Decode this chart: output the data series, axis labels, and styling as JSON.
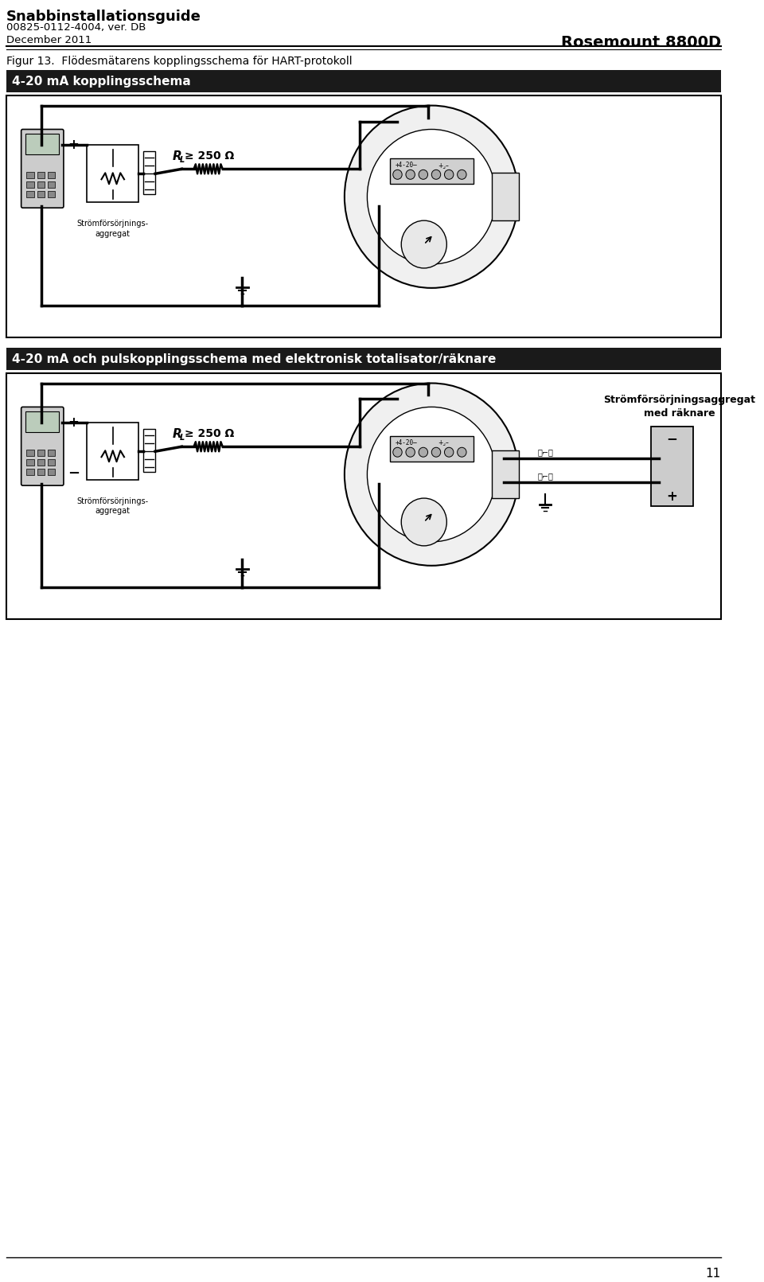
{
  "page_width": 9.6,
  "page_height": 16.11,
  "bg_color": "#ffffff",
  "header_title": "Snabbinstallationsguide",
  "header_sub1": "00825-0112-4004, ver. DB",
  "header_sub2": "December 2011",
  "header_right": "Rosemount 8800D",
  "figure_caption": "Figur 13.  Flödesmätarens kopplingsschema för HART-protokoll",
  "section1_label": "4-20 mA kopplingsschema",
  "section2_label": "4-20 mA och pulskopplingsschema med elektronisk totalisator/räknare",
  "rl_val": "≥ 250 Ω",
  "stromforsorjning": "Strömförsörjnings-\naggregat",
  "stromforsorjning_med_raknare": "Strömförsörjningsaggregat\nmed räknare",
  "footer_page": "11",
  "section_header_bg": "#1a1a1a",
  "section_header_fg": "#ffffff"
}
